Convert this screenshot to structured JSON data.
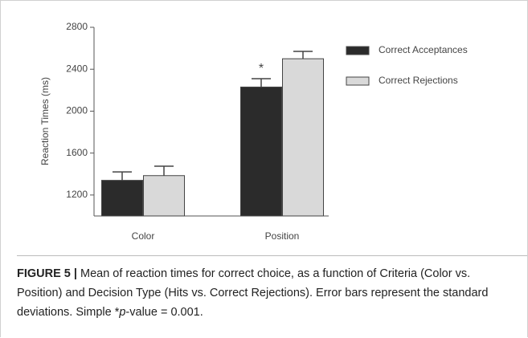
{
  "chart_data": {
    "type": "bar",
    "ylabel": "Reaction Times (ms)",
    "categories": [
      "Color",
      "Position"
    ],
    "series": [
      {
        "name": "Correct Acceptances",
        "color": "#2b2b2b",
        "values": [
          1340,
          2230
        ],
        "errors": [
          80,
          80
        ]
      },
      {
        "name": "Correct Rejections",
        "color": "#d9d9d9",
        "values": [
          1385,
          2500
        ],
        "errors": [
          90,
          70
        ]
      }
    ],
    "ylim": [
      1000,
      2800
    ],
    "yticks": [
      1200,
      1600,
      2000,
      2400,
      2800
    ],
    "annotations": [
      {
        "text": "*",
        "category": 1,
        "series": 0
      }
    ]
  },
  "caption": {
    "label": "FIGURE 5 |",
    "parts": [
      "Mean of reaction times for correct choice, as a function of Criteria (Color vs. Position) and Decision Type (Hits vs. Correct Rejections). Error bars represent the standard deviations. Simple *",
      "p",
      "-value = 0.001."
    ]
  }
}
